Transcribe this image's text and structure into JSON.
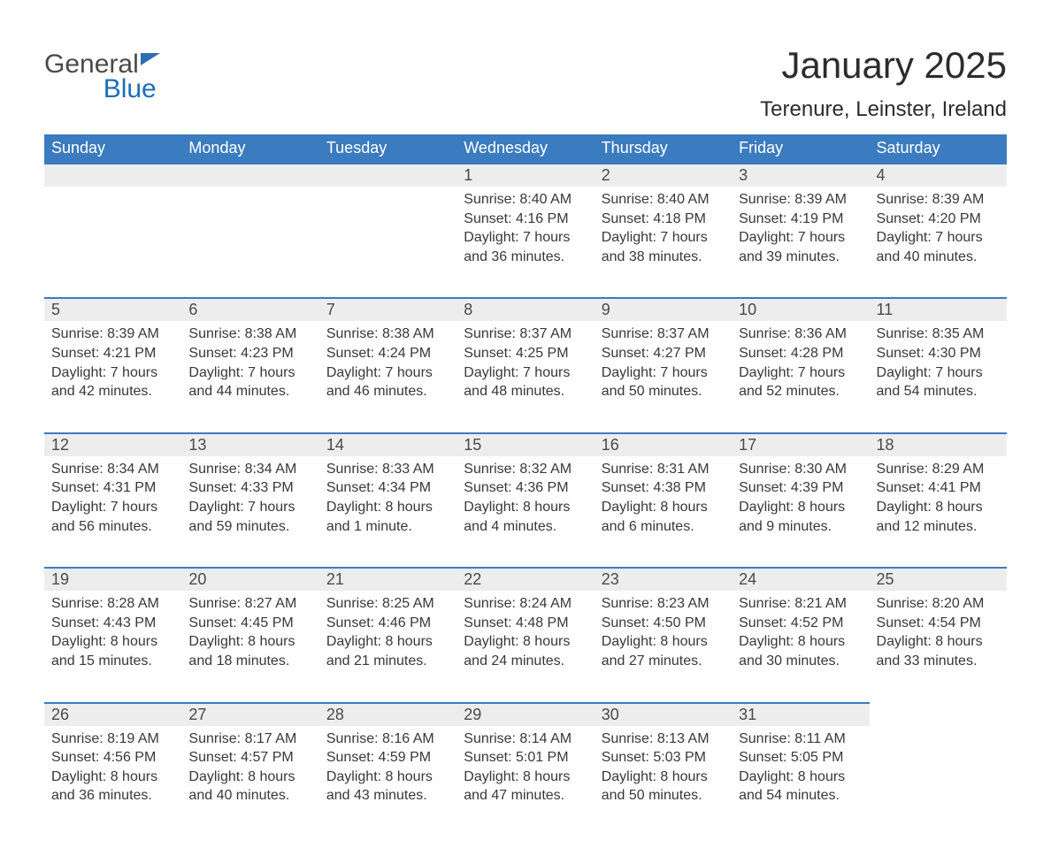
{
  "brand": {
    "word1": "General",
    "word2": "Blue"
  },
  "title": "January 2025",
  "location": "Terenure, Leinster, Ireland",
  "colors": {
    "header_bg": "#3b7bbf",
    "header_text": "#ffffff",
    "row_accent": "#3b7bbf",
    "daynum_bg": "#ededed",
    "body_text": "#383838",
    "logo_blue": "#1d6fb8"
  },
  "fonts": {
    "title_size_pt": 32,
    "location_size_pt": 18,
    "daynum_size_pt": 14,
    "body_size_pt": 12,
    "header_size_pt": 14
  },
  "day_headers": [
    "Sunday",
    "Monday",
    "Tuesday",
    "Wednesday",
    "Thursday",
    "Friday",
    "Saturday"
  ],
  "weeks": [
    [
      null,
      null,
      null,
      {
        "num": "1",
        "sunrise": "Sunrise: 8:40 AM",
        "sunset": "Sunset: 4:16 PM",
        "daylight": "Daylight: 7 hours and 36 minutes."
      },
      {
        "num": "2",
        "sunrise": "Sunrise: 8:40 AM",
        "sunset": "Sunset: 4:18 PM",
        "daylight": "Daylight: 7 hours and 38 minutes."
      },
      {
        "num": "3",
        "sunrise": "Sunrise: 8:39 AM",
        "sunset": "Sunset: 4:19 PM",
        "daylight": "Daylight: 7 hours and 39 minutes."
      },
      {
        "num": "4",
        "sunrise": "Sunrise: 8:39 AM",
        "sunset": "Sunset: 4:20 PM",
        "daylight": "Daylight: 7 hours and 40 minutes."
      }
    ],
    [
      {
        "num": "5",
        "sunrise": "Sunrise: 8:39 AM",
        "sunset": "Sunset: 4:21 PM",
        "daylight": "Daylight: 7 hours and 42 minutes."
      },
      {
        "num": "6",
        "sunrise": "Sunrise: 8:38 AM",
        "sunset": "Sunset: 4:23 PM",
        "daylight": "Daylight: 7 hours and 44 minutes."
      },
      {
        "num": "7",
        "sunrise": "Sunrise: 8:38 AM",
        "sunset": "Sunset: 4:24 PM",
        "daylight": "Daylight: 7 hours and 46 minutes."
      },
      {
        "num": "8",
        "sunrise": "Sunrise: 8:37 AM",
        "sunset": "Sunset: 4:25 PM",
        "daylight": "Daylight: 7 hours and 48 minutes."
      },
      {
        "num": "9",
        "sunrise": "Sunrise: 8:37 AM",
        "sunset": "Sunset: 4:27 PM",
        "daylight": "Daylight: 7 hours and 50 minutes."
      },
      {
        "num": "10",
        "sunrise": "Sunrise: 8:36 AM",
        "sunset": "Sunset: 4:28 PM",
        "daylight": "Daylight: 7 hours and 52 minutes."
      },
      {
        "num": "11",
        "sunrise": "Sunrise: 8:35 AM",
        "sunset": "Sunset: 4:30 PM",
        "daylight": "Daylight: 7 hours and 54 minutes."
      }
    ],
    [
      {
        "num": "12",
        "sunrise": "Sunrise: 8:34 AM",
        "sunset": "Sunset: 4:31 PM",
        "daylight": "Daylight: 7 hours and 56 minutes."
      },
      {
        "num": "13",
        "sunrise": "Sunrise: 8:34 AM",
        "sunset": "Sunset: 4:33 PM",
        "daylight": "Daylight: 7 hours and 59 minutes."
      },
      {
        "num": "14",
        "sunrise": "Sunrise: 8:33 AM",
        "sunset": "Sunset: 4:34 PM",
        "daylight": "Daylight: 8 hours and 1 minute."
      },
      {
        "num": "15",
        "sunrise": "Sunrise: 8:32 AM",
        "sunset": "Sunset: 4:36 PM",
        "daylight": "Daylight: 8 hours and 4 minutes."
      },
      {
        "num": "16",
        "sunrise": "Sunrise: 8:31 AM",
        "sunset": "Sunset: 4:38 PM",
        "daylight": "Daylight: 8 hours and 6 minutes."
      },
      {
        "num": "17",
        "sunrise": "Sunrise: 8:30 AM",
        "sunset": "Sunset: 4:39 PM",
        "daylight": "Daylight: 8 hours and 9 minutes."
      },
      {
        "num": "18",
        "sunrise": "Sunrise: 8:29 AM",
        "sunset": "Sunset: 4:41 PM",
        "daylight": "Daylight: 8 hours and 12 minutes."
      }
    ],
    [
      {
        "num": "19",
        "sunrise": "Sunrise: 8:28 AM",
        "sunset": "Sunset: 4:43 PM",
        "daylight": "Daylight: 8 hours and 15 minutes."
      },
      {
        "num": "20",
        "sunrise": "Sunrise: 8:27 AM",
        "sunset": "Sunset: 4:45 PM",
        "daylight": "Daylight: 8 hours and 18 minutes."
      },
      {
        "num": "21",
        "sunrise": "Sunrise: 8:25 AM",
        "sunset": "Sunset: 4:46 PM",
        "daylight": "Daylight: 8 hours and 21 minutes."
      },
      {
        "num": "22",
        "sunrise": "Sunrise: 8:24 AM",
        "sunset": "Sunset: 4:48 PM",
        "daylight": "Daylight: 8 hours and 24 minutes."
      },
      {
        "num": "23",
        "sunrise": "Sunrise: 8:23 AM",
        "sunset": "Sunset: 4:50 PM",
        "daylight": "Daylight: 8 hours and 27 minutes."
      },
      {
        "num": "24",
        "sunrise": "Sunrise: 8:21 AM",
        "sunset": "Sunset: 4:52 PM",
        "daylight": "Daylight: 8 hours and 30 minutes."
      },
      {
        "num": "25",
        "sunrise": "Sunrise: 8:20 AM",
        "sunset": "Sunset: 4:54 PM",
        "daylight": "Daylight: 8 hours and 33 minutes."
      }
    ],
    [
      {
        "num": "26",
        "sunrise": "Sunrise: 8:19 AM",
        "sunset": "Sunset: 4:56 PM",
        "daylight": "Daylight: 8 hours and 36 minutes."
      },
      {
        "num": "27",
        "sunrise": "Sunrise: 8:17 AM",
        "sunset": "Sunset: 4:57 PM",
        "daylight": "Daylight: 8 hours and 40 minutes."
      },
      {
        "num": "28",
        "sunrise": "Sunrise: 8:16 AM",
        "sunset": "Sunset: 4:59 PM",
        "daylight": "Daylight: 8 hours and 43 minutes."
      },
      {
        "num": "29",
        "sunrise": "Sunrise: 8:14 AM",
        "sunset": "Sunset: 5:01 PM",
        "daylight": "Daylight: 8 hours and 47 minutes."
      },
      {
        "num": "30",
        "sunrise": "Sunrise: 8:13 AM",
        "sunset": "Sunset: 5:03 PM",
        "daylight": "Daylight: 8 hours and 50 minutes."
      },
      {
        "num": "31",
        "sunrise": "Sunrise: 8:11 AM",
        "sunset": "Sunset: 5:05 PM",
        "daylight": "Daylight: 8 hours and 54 minutes."
      },
      null
    ]
  ]
}
